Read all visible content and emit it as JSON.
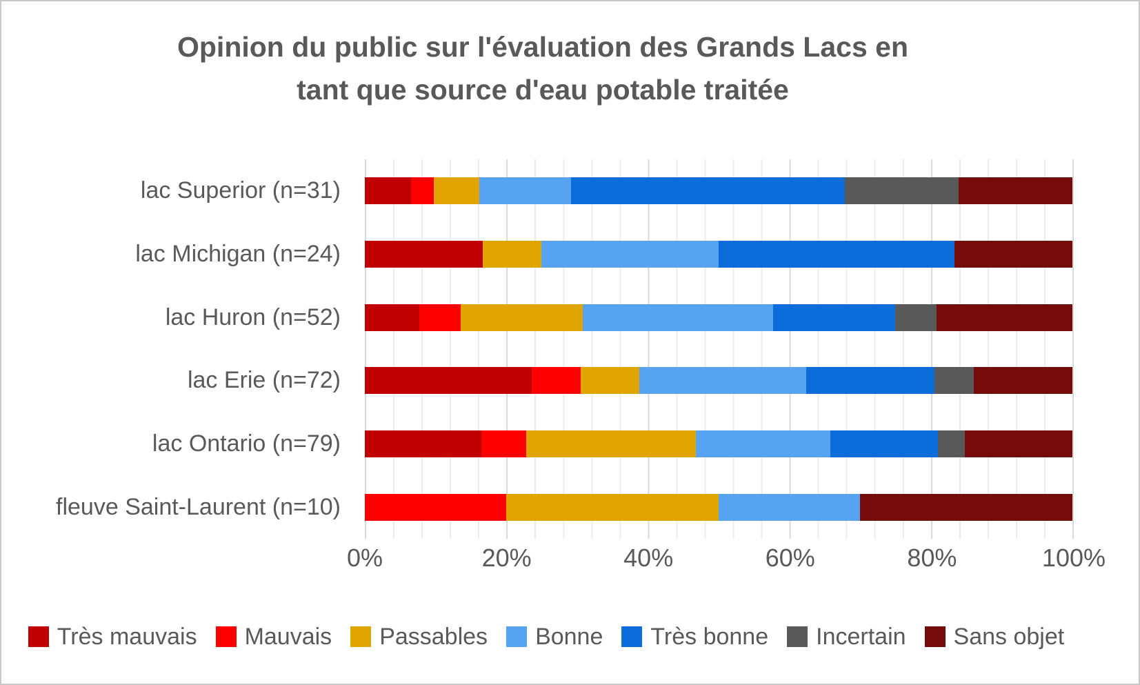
{
  "chart": {
    "title_line1": "Opinion du public sur l'évaluation des Grands Lacs en",
    "title_line2": "tant que source d'eau potable traitée",
    "title_color": "#595959",
    "text_color": "#595959",
    "minor_gridline_color": "#ececec",
    "major_gridline_color": "#d9d9d9"
  },
  "chart_data": {
    "type": "bar",
    "orientation": "horizontal",
    "stacked": true,
    "stacked_to_100_percent": true,
    "title": "Opinion du public sur l'évaluation des Grands Lacs en tant que source d'eau potable traitée",
    "xlabel": "",
    "ylabel": "",
    "categories": [
      "lac Superior (n=31)",
      "lac Michigan (n=24)",
      "lac Huron (n=52)",
      "lac Erie (n=72)",
      "lac Ontario (n=79)",
      "fleuve Saint-Laurent (n=10)"
    ],
    "series": [
      {
        "name": "Très mauvais",
        "color": "#C00000",
        "values": [
          6.5,
          16.7,
          7.7,
          23.6,
          16.5,
          0
        ]
      },
      {
        "name": "Mauvais",
        "color": "#FE0000",
        "values": [
          3.2,
          0.0,
          5.8,
          6.9,
          6.3,
          20.0
        ]
      },
      {
        "name": "Passables",
        "color": "#E0A500",
        "values": [
          6.5,
          8.3,
          17.3,
          8.3,
          24.0,
          30.0
        ]
      },
      {
        "name": "Bonne",
        "color": "#56A4F1",
        "values": [
          12.9,
          25.0,
          26.9,
          23.6,
          19.0,
          20.0
        ]
      },
      {
        "name": "Très bonne",
        "color": "#0C6CD9",
        "values": [
          38.7,
          33.3,
          17.3,
          18.1,
          15.2,
          0
        ]
      },
      {
        "name": "Incertain",
        "color": "#595959",
        "values": [
          16.1,
          0.0,
          5.8,
          5.6,
          3.8,
          0
        ]
      },
      {
        "name": "Sans objet",
        "color": "#760B0B",
        "values": [
          16.1,
          16.7,
          19.2,
          13.9,
          15.2,
          30.0
        ]
      }
    ],
    "x_axis": {
      "range": [
        0,
        100
      ],
      "tick_labels": [
        "0%",
        "20%",
        "40%",
        "60%",
        "80%",
        "100%"
      ],
      "minor_gridline_step_percent": 4,
      "major_gridline_step_percent": 20,
      "grid": true
    },
    "legend_position": "bottom"
  }
}
